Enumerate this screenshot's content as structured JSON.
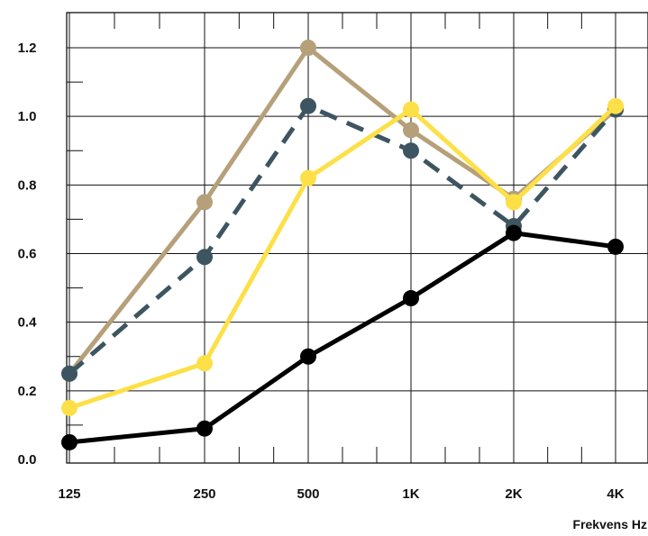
{
  "chart_data": {
    "type": "line",
    "title": "",
    "xlabel": "Frekvens Hz",
    "ylabel": "",
    "categories": [
      "125",
      "250",
      "500",
      "1K",
      "2K",
      "4K"
    ],
    "yticks": [
      "0.0",
      "0.2",
      "0.4",
      "0.6",
      "0.8",
      "1.0",
      "1.2"
    ],
    "ylim": [
      0,
      1.2
    ],
    "grid": true,
    "legend": "none",
    "series": [
      {
        "color": "#b5a07a",
        "dashed": false,
        "values": [
          0.25,
          0.75,
          1.2,
          0.96,
          0.76,
          1.02
        ]
      },
      {
        "color": "#3d5560",
        "dashed": true,
        "values": [
          0.25,
          0.59,
          1.03,
          0.9,
          0.68,
          1.02
        ]
      },
      {
        "color": "#fde047",
        "dashed": false,
        "values": [
          0.15,
          0.28,
          0.82,
          1.02,
          0.75,
          1.03
        ]
      },
      {
        "color": "#000000",
        "dashed": false,
        "values": [
          0.05,
          0.09,
          0.3,
          0.47,
          0.66,
          0.62
        ]
      }
    ]
  }
}
